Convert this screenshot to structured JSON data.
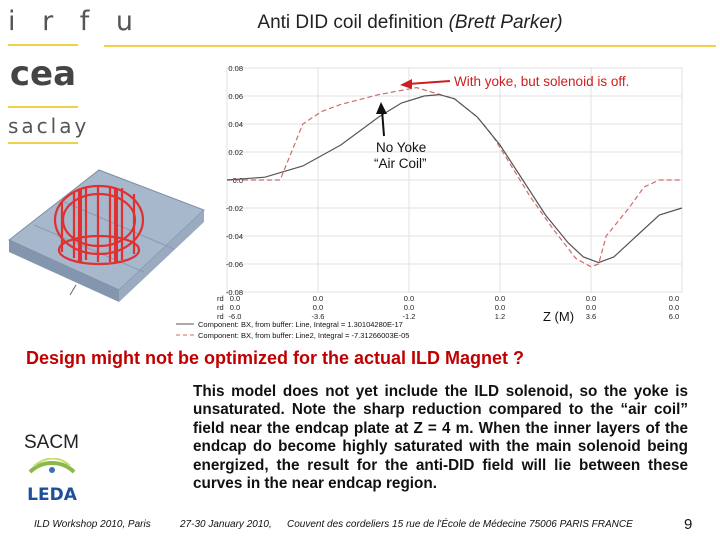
{
  "logos": {
    "irfu": "i r f u",
    "cea": "cea",
    "saclay": "saclay",
    "leda": "LEDA"
  },
  "title": {
    "main": "Anti DID coil definition",
    "author": "(Brett Parker)"
  },
  "highlight": "Design might not be optimized for the actual ILD Magnet ?",
  "body_text": "This model does not yet include the ILD solenoid, so the yoke is unsaturated. Note the sharp reduction compared to the “air coil” field near the endcap plate at Z = 4 m. When the inner layers of the endcap do become highly saturated with the main solenoid being energized, the result for the anti-DID field will lie between these curves in the near endcap region.",
  "sacm": "SACM",
  "footer": {
    "workshop": "ILD Workshop 2010, Paris",
    "dates": "27-30 January 2010,",
    "venue": "Couvent des cordeliers  15 rue de l'École de Médecine 75006 PARIS FRANCE",
    "page": "9"
  },
  "chart_data": {
    "type": "line",
    "ylim": [
      -0.08,
      0.08
    ],
    "yticks": [
      "0.08",
      "0.06",
      "0.04",
      "0.02",
      "0.0",
      "-0.02",
      "-0.04",
      "-0.06",
      "-0.08"
    ],
    "x_rows": {
      "label_col": [
        "rd",
        "rd",
        "rd"
      ],
      "cols": [
        [
          "0.0",
          "0.0",
          "-6.0"
        ],
        [
          "0.0",
          "0.0",
          "-3.6"
        ],
        [
          "0.0",
          "0.0",
          "-1.2"
        ],
        [
          "0.0",
          "0.0",
          "1.2"
        ],
        [
          "0.0",
          "0.0",
          "3.6"
        ],
        [
          "0.0",
          "0.0",
          "6.0"
        ]
      ]
    },
    "xlim": [
      -6.0,
      6.0
    ],
    "xlabel": "Z (M)",
    "legend": [
      "Component: BX, from buffer: Line, Integral = 1.30104280E-17",
      "Component: BX, from buffer: Line2, Integral = -7.31266003E-05"
    ],
    "series": [
      {
        "color": "#d26a6a",
        "dash": true,
        "x": [
          -6.0,
          -5.4,
          -4.6,
          -4.3,
          -4.0,
          -3.5,
          -3.0,
          -2.0,
          -1.0,
          0.0,
          0.6,
          1.0,
          1.5,
          2.0,
          2.6,
          3.2,
          3.6,
          3.8,
          4.0,
          4.6,
          5.0,
          5.4,
          5.7,
          6.0
        ],
        "y": [
          0.0,
          0.0,
          0.0,
          0.02,
          0.04,
          0.049,
          0.054,
          0.061,
          0.066,
          0.058,
          0.045,
          0.032,
          0.01,
          -0.012,
          -0.035,
          -0.056,
          -0.062,
          -0.06,
          -0.04,
          -0.02,
          -0.005,
          0.0,
          0.0,
          0.0
        ]
      },
      {
        "color": "#555555",
        "dash": false,
        "x": [
          -6.0,
          -5.0,
          -4.0,
          -3.0,
          -2.0,
          -1.4,
          -0.8,
          -0.4,
          0.0,
          0.6,
          1.2,
          1.8,
          2.4,
          3.0,
          3.4,
          3.8,
          4.2,
          4.8,
          5.4,
          6.0
        ],
        "y": [
          0.0,
          0.002,
          0.01,
          0.025,
          0.045,
          0.055,
          0.06,
          0.061,
          0.058,
          0.045,
          0.025,
          0.0,
          -0.025,
          -0.045,
          -0.055,
          -0.059,
          -0.055,
          -0.04,
          -0.025,
          -0.02
        ]
      }
    ],
    "annotations": [
      {
        "text": "With yoke, but solenoid is off.",
        "color": "#cc2020"
      },
      {
        "text": "No Yoke",
        "color": "#111111"
      },
      {
        "text": "“Air Coil”",
        "color": "#111111"
      }
    ]
  }
}
